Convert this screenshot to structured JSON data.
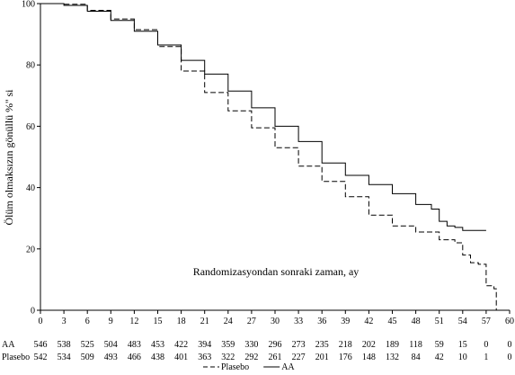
{
  "chart_data": {
    "type": "line",
    "xlabel": "Randomizasyondan sonraki zaman, ay",
    "ylabel": "Ölüm olmaksızın gönüllü %'' si",
    "xlim": [
      0,
      60
    ],
    "ylim": [
      0,
      100
    ],
    "x_ticks": [
      0,
      3,
      6,
      9,
      12,
      15,
      18,
      21,
      24,
      27,
      30,
      33,
      36,
      39,
      42,
      45,
      48,
      51,
      54,
      57,
      60
    ],
    "y_ticks": [
      0,
      20,
      40,
      60,
      80,
      100
    ],
    "x_tick_labels": [
      "0",
      "3",
      "6",
      "9",
      "12",
      "15",
      "18",
      "21",
      "24",
      "27",
      "30",
      "33",
      "36",
      "39",
      "42",
      "45",
      "48",
      "51",
      "54",
      "57",
      "60"
    ],
    "y_tick_labels": [
      "0",
      "20",
      "40",
      "60",
      "80",
      "100"
    ],
    "grid": false,
    "series": [
      {
        "name": "AA",
        "line_style": "solid",
        "points": [
          [
            0,
            100
          ],
          [
            3,
            99.4
          ],
          [
            6,
            97.5
          ],
          [
            9,
            94.5
          ],
          [
            12,
            91
          ],
          [
            15,
            86.5
          ],
          [
            18,
            81.5
          ],
          [
            21,
            77
          ],
          [
            24,
            71.5
          ],
          [
            27,
            66
          ],
          [
            30,
            60
          ],
          [
            33,
            55
          ],
          [
            36,
            48
          ],
          [
            39,
            44
          ],
          [
            42,
            41
          ],
          [
            45,
            38
          ],
          [
            48,
            34.5
          ],
          [
            50,
            33
          ],
          [
            51,
            29
          ],
          [
            52,
            27.5
          ],
          [
            53,
            27
          ],
          [
            54,
            26
          ],
          [
            57,
            26
          ]
        ]
      },
      {
        "name": "Plasebo",
        "line_style": "dashed",
        "points": [
          [
            0,
            100
          ],
          [
            3,
            99.8
          ],
          [
            6,
            97.8
          ],
          [
            9,
            95
          ],
          [
            12,
            91.5
          ],
          [
            15,
            86
          ],
          [
            18,
            78
          ],
          [
            21,
            71
          ],
          [
            24,
            65
          ],
          [
            27,
            59.5
          ],
          [
            30,
            53
          ],
          [
            33,
            47
          ],
          [
            36,
            42
          ],
          [
            39,
            37
          ],
          [
            42,
            31
          ],
          [
            45,
            27.5
          ],
          [
            48,
            25.5
          ],
          [
            51,
            23
          ],
          [
            53,
            22
          ],
          [
            54,
            18
          ],
          [
            55,
            15.5
          ],
          [
            56,
            15
          ],
          [
            57,
            8
          ],
          [
            58,
            7
          ],
          [
            58.3,
            0
          ]
        ]
      }
    ],
    "risk_table": {
      "rows": [
        {
          "label": "AA",
          "values": [
            "546",
            "538",
            "525",
            "504",
            "483",
            "453",
            "422",
            "394",
            "359",
            "330",
            "296",
            "273",
            "235",
            "218",
            "202",
            "189",
            "118",
            "59",
            "15",
            "0",
            "0"
          ]
        },
        {
          "label": "Plasebo",
          "values": [
            "542",
            "534",
            "509",
            "493",
            "466",
            "438",
            "401",
            "363",
            "322",
            "292",
            "261",
            "227",
            "201",
            "176",
            "148",
            "132",
            "84",
            "42",
            "10",
            "1",
            "0"
          ]
        }
      ]
    },
    "legend": {
      "placement": "bottom-center",
      "entries": [
        {
          "label": "Plasebo",
          "line_style": "dashed"
        },
        {
          "label": "AA",
          "line_style": "solid"
        }
      ]
    }
  }
}
